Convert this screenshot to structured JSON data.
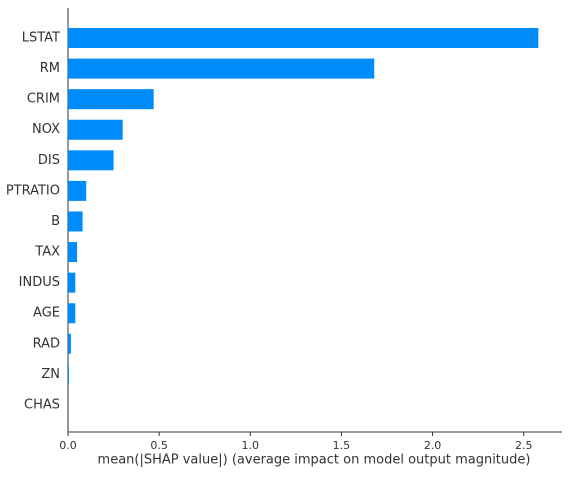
{
  "chart_data": {
    "type": "bar",
    "orientation": "horizontal",
    "x_label": "mean(|SHAP value|) (average impact on model output magnitude)",
    "categories": [
      "LSTAT",
      "RM",
      "CRIM",
      "NOX",
      "DIS",
      "PTRATIO",
      "B",
      "TAX",
      "INDUS",
      "AGE",
      "RAD",
      "ZN",
      "CHAS"
    ],
    "values": [
      2.58,
      1.68,
      0.47,
      0.3,
      0.25,
      0.1,
      0.08,
      0.05,
      0.04,
      0.04,
      0.016,
      0.005,
      0
    ],
    "color": "#008bfb",
    "xlim": [
      0,
      2.71
    ],
    "xticks": [
      {
        "value": 0,
        "label": "0.0"
      },
      0.5,
      {
        "value": 1,
        "label": "1.0"
      },
      1.5,
      {
        "value": 2,
        "label": "2.0"
      },
      2.5
    ]
  }
}
